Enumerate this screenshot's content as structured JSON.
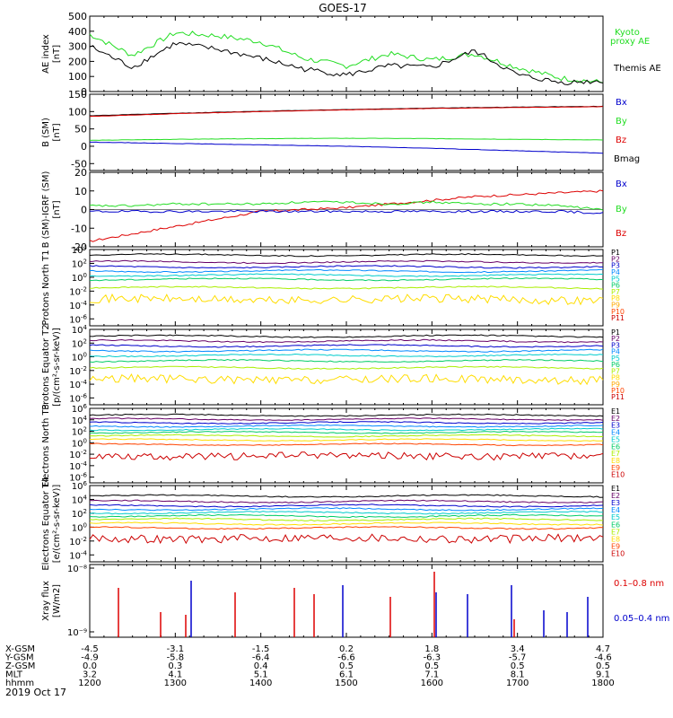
{
  "title": "GOES-17",
  "date_label": "2019 Oct 17",
  "colors": {
    "black": "#000000",
    "red": "#dd0000",
    "green": "#22dd22",
    "blue": "#0000cc"
  },
  "chart_data": [
    {
      "type": "line",
      "ylabel": "AE index [nT]",
      "ylim": [
        0,
        500
      ],
      "yticks": [
        "0",
        "100",
        "200",
        "300",
        "400",
        "500"
      ],
      "x": [
        "12:00",
        "12:30",
        "13:00",
        "13:30",
        "14:00",
        "14:30",
        "15:00",
        "15:30",
        "16:00",
        "16:30",
        "17:00",
        "17:30",
        "18:00"
      ],
      "legend": [
        {
          "text": "Kyoto",
          "color": "#22dd22"
        },
        {
          "text": "proxy AE",
          "color": "#22dd22"
        },
        {
          "text": "Themis AE",
          "color": "#000000"
        }
      ],
      "series": [
        {
          "name": "Kyoto proxy AE",
          "color": "#22dd22",
          "values": [
            380,
            240,
            390,
            370,
            330,
            220,
            170,
            250,
            210,
            250,
            160,
            90,
            60
          ]
        },
        {
          "name": "Themis AE",
          "color": "#000000",
          "values": [
            300,
            160,
            320,
            280,
            220,
            150,
            110,
            170,
            160,
            270,
            110,
            60,
            70
          ]
        }
      ]
    },
    {
      "type": "line",
      "ylabel": "B (SM) [nT]",
      "ylim": [
        -70,
        150
      ],
      "yticks": [
        "-50",
        "0",
        "50",
        "100",
        "150"
      ],
      "x": [
        "12:00",
        "13:00",
        "14:00",
        "15:00",
        "16:00",
        "17:00",
        "18:00"
      ],
      "legend": [
        {
          "text": "Bx",
          "color": "#0000cc"
        },
        {
          "text": "By",
          "color": "#22dd22"
        },
        {
          "text": "Bz",
          "color": "#dd0000"
        },
        {
          "text": "Bmag",
          "color": "#000000"
        }
      ],
      "series": [
        {
          "name": "Bmag",
          "color": "#000000",
          "values": [
            88,
            95,
            101,
            106,
            110,
            113,
            115
          ]
        },
        {
          "name": "Bz",
          "color": "#dd0000",
          "values": [
            86,
            94,
            100,
            105,
            109,
            112,
            114
          ]
        },
        {
          "name": "By",
          "color": "#22dd22",
          "values": [
            17,
            20,
            22,
            23,
            22,
            20,
            18
          ]
        },
        {
          "name": "Bx",
          "color": "#0000cc",
          "values": [
            12,
            8,
            4,
            0,
            -6,
            -13,
            -20
          ]
        }
      ]
    },
    {
      "type": "line",
      "ylabel": "B (SM)-IGRF (SM) [nT]",
      "ylim": [
        -20,
        20
      ],
      "yticks": [
        "-20",
        "-10",
        "0",
        "10",
        "20"
      ],
      "x": [
        "12:00",
        "12:30",
        "13:00",
        "13:30",
        "14:00",
        "14:30",
        "15:00",
        "15:30",
        "16:00",
        "16:30",
        "17:00",
        "17:30",
        "18:00"
      ],
      "legend": [
        {
          "text": "Bx",
          "color": "#0000cc"
        },
        {
          "text": "By",
          "color": "#22dd22"
        },
        {
          "text": "Bz",
          "color": "#dd0000"
        }
      ],
      "series": [
        {
          "name": "Bz",
          "color": "#dd0000",
          "values": [
            -17,
            -13,
            -9,
            -5,
            -1,
            0,
            1,
            3,
            5,
            7,
            8,
            9,
            10
          ]
        },
        {
          "name": "By",
          "color": "#22dd22",
          "values": [
            2,
            2,
            3,
            3,
            3,
            4,
            4,
            3,
            4,
            3,
            3,
            2,
            0
          ]
        },
        {
          "name": "Bx",
          "color": "#0000cc",
          "values": [
            -1,
            -1,
            -1,
            -1,
            -1,
            -1,
            -1,
            -1,
            -1,
            -1,
            -1,
            -1,
            -2
          ]
        }
      ]
    },
    {
      "type": "line",
      "log": true,
      "ylabel": "Protons North T1",
      "ylim_exp": [
        -7,
        4
      ],
      "ytick_exps": [
        -6,
        -4,
        -2,
        0,
        2,
        4
      ],
      "legend": [
        {
          "text": "P1",
          "color": "#000000"
        },
        {
          "text": "P2",
          "color": "#660066"
        },
        {
          "text": "P3",
          "color": "#0000cc"
        },
        {
          "text": "P4",
          "color": "#0088ff"
        },
        {
          "text": "P5",
          "color": "#00cccc"
        },
        {
          "text": "P6",
          "color": "#00cc66"
        },
        {
          "text": "P7",
          "color": "#aaee00"
        },
        {
          "text": "P8",
          "color": "#ffdd00"
        },
        {
          "text": "P9",
          "color": "#ffaa00"
        },
        {
          "text": "P10",
          "color": "#ff4400"
        },
        {
          "text": "P11",
          "color": "#cc0000"
        }
      ],
      "series_levels_exp": [
        3.2,
        2.2,
        1.5,
        0.9,
        0.3,
        -0.3,
        -1.5,
        -3.2
      ]
    },
    {
      "type": "line",
      "log": true,
      "ylabel": "Protons Equator T2 [p/(cm²-s-sr-keV)]",
      "ylim_exp": [
        -7,
        4
      ],
      "ytick_exps": [
        -6,
        -4,
        -2,
        0,
        2,
        4
      ],
      "legend": [
        {
          "text": "P1",
          "color": "#000000"
        },
        {
          "text": "P2",
          "color": "#660066"
        },
        {
          "text": "P3",
          "color": "#0000cc"
        },
        {
          "text": "P4",
          "color": "#0088ff"
        },
        {
          "text": "P5",
          "color": "#00cccc"
        },
        {
          "text": "P6",
          "color": "#00cc66"
        },
        {
          "text": "P7",
          "color": "#aaee00"
        },
        {
          "text": "P8",
          "color": "#ffdd00"
        },
        {
          "text": "P9",
          "color": "#ffaa00"
        },
        {
          "text": "P10",
          "color": "#ff4400"
        },
        {
          "text": "P11",
          "color": "#cc0000"
        }
      ],
      "series_levels_exp": [
        3.0,
        2.3,
        1.6,
        0.9,
        0.2,
        -0.6,
        -1.6,
        -3.3
      ]
    },
    {
      "type": "line",
      "log": true,
      "ylabel": "Electrons North T3",
      "ylim_exp": [
        -7,
        6
      ],
      "ytick_exps": [
        -6,
        -4,
        -2,
        0,
        2,
        4,
        6
      ],
      "legend": [
        {
          "text": "E1",
          "color": "#000000"
        },
        {
          "text": "E2",
          "color": "#660066"
        },
        {
          "text": "E3",
          "color": "#0000cc"
        },
        {
          "text": "E4",
          "color": "#0088ff"
        },
        {
          "text": "E5",
          "color": "#00cccc"
        },
        {
          "text": "E6",
          "color": "#00cc66"
        },
        {
          "text": "E7",
          "color": "#aaee00"
        },
        {
          "text": "E8",
          "color": "#ffdd00"
        },
        {
          "text": "E9",
          "color": "#ff4400"
        },
        {
          "text": "E10",
          "color": "#cc0000"
        }
      ],
      "series_levels_exp": [
        4.8,
        4.1,
        3.5,
        2.9,
        2.3,
        1.8,
        1.2,
        0.5,
        -0.3,
        -2.3
      ]
    },
    {
      "type": "line",
      "log": true,
      "ylabel": "Electrons Equator T4 [e/(cm²-s-sr-keV)]",
      "ylim_exp": [
        -5,
        6
      ],
      "ytick_exps": [
        -4,
        -2,
        0,
        2,
        4,
        6
      ],
      "legend": [
        {
          "text": "E1",
          "color": "#000000"
        },
        {
          "text": "E2",
          "color": "#660066"
        },
        {
          "text": "E3",
          "color": "#0000cc"
        },
        {
          "text": "E4",
          "color": "#0088ff"
        },
        {
          "text": "E5",
          "color": "#00cccc"
        },
        {
          "text": "E6",
          "color": "#00cc66"
        },
        {
          "text": "E7",
          "color": "#aaee00"
        },
        {
          "text": "E8",
          "color": "#ffdd00"
        },
        {
          "text": "E9",
          "color": "#ff4400"
        },
        {
          "text": "E10",
          "color": "#cc0000"
        }
      ],
      "series_levels_exp": [
        4.5,
        3.7,
        3.1,
        2.6,
        2.1,
        1.6,
        1.1,
        0.5,
        -0.1,
        -1.6
      ]
    },
    {
      "type": "line",
      "log": true,
      "ylabel": "Xray flux [W/m2]",
      "ytick_labels": [
        "10⁻⁸",
        "10⁻⁹"
      ],
      "legend": [
        {
          "text": "0.1–0.8 nm",
          "color": "#dd0000"
        },
        {
          "text": "0.05–0.4 nm",
          "color": "#0000cc"
        }
      ]
    }
  ],
  "ephemeris": {
    "row_labels": [
      "X-GSM",
      "Y-GSM",
      "Z-GSM",
      "MLT",
      "hhmm"
    ],
    "columns": [
      {
        "X-GSM": "-4.5",
        "Y-GSM": "-4.9",
        "Z-GSM": "0.0",
        "MLT": "3.2",
        "hhmm": "1200"
      },
      {
        "X-GSM": "-3.1",
        "Y-GSM": "-5.8",
        "Z-GSM": "0.3",
        "MLT": "4.1",
        "hhmm": "1300"
      },
      {
        "X-GSM": "-1.5",
        "Y-GSM": "-6.4",
        "Z-GSM": "0.4",
        "MLT": "5.1",
        "hhmm": "1400"
      },
      {
        "X-GSM": "0.2",
        "Y-GSM": "-6.6",
        "Z-GSM": "0.5",
        "MLT": "6.1",
        "hhmm": "1500"
      },
      {
        "X-GSM": "1.8",
        "Y-GSM": "-6.3",
        "Z-GSM": "0.5",
        "MLT": "7.1",
        "hhmm": "1600"
      },
      {
        "X-GSM": "3.4",
        "Y-GSM": "-5.7",
        "Z-GSM": "0.5",
        "MLT": "8.1",
        "hhmm": "1700"
      },
      {
        "X-GSM": "4.7",
        "Y-GSM": "-4.6",
        "Z-GSM": "0.5",
        "MLT": "9.1",
        "hhmm": "1800"
      }
    ]
  }
}
